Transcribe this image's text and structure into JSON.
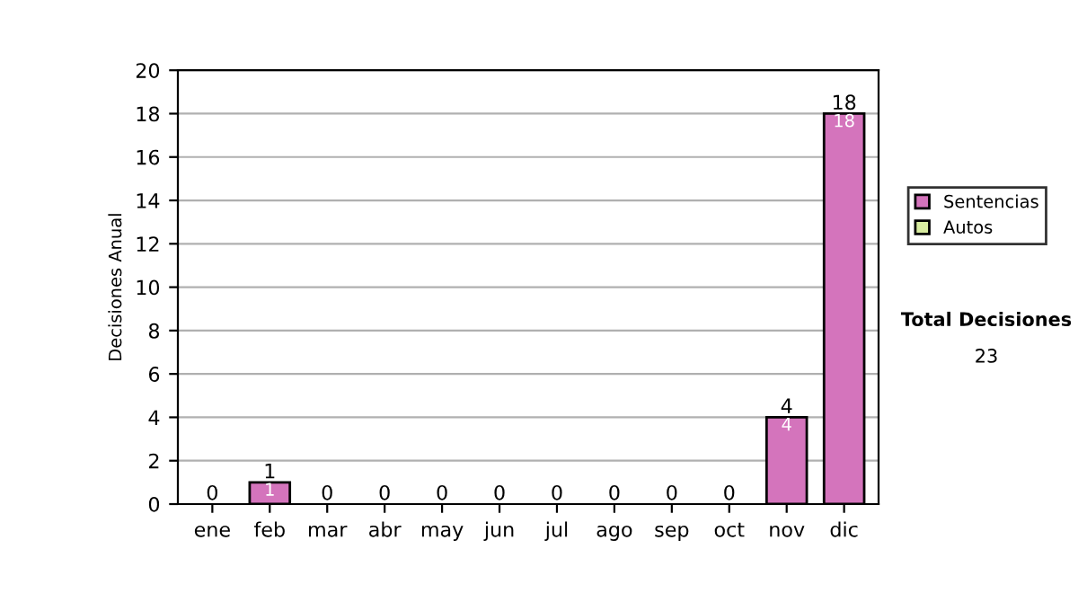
{
  "chart_data": {
    "type": "bar",
    "ylabel": "Decisiones Anual",
    "categories": [
      "ene",
      "feb",
      "mar",
      "abr",
      "may",
      "jun",
      "jul",
      "ago",
      "sep",
      "oct",
      "nov",
      "dic"
    ],
    "series": [
      {
        "name": "Sentencias",
        "color": "#d474bc",
        "values": [
          0,
          1,
          0,
          0,
          0,
          0,
          0,
          0,
          0,
          0,
          4,
          18
        ],
        "value_labels": [
          null,
          "1",
          null,
          null,
          null,
          null,
          null,
          null,
          null,
          null,
          "4",
          "18"
        ]
      },
      {
        "name": "Autos",
        "color": "#d8eca0",
        "values": [
          0,
          0,
          0,
          0,
          0,
          0,
          0,
          0,
          0,
          0,
          0,
          0
        ]
      }
    ],
    "stacked": true,
    "totals": [
      "0",
      "1",
      "0",
      "0",
      "0",
      "0",
      "0",
      "0",
      "0",
      "0",
      "4",
      "18"
    ],
    "ylim": [
      0,
      20
    ],
    "yticks": [
      0,
      2,
      4,
      6,
      8,
      10,
      12,
      14,
      16,
      18,
      20
    ],
    "grid": "y",
    "legend": "right",
    "annotations": [
      "Total Decisiones",
      "23"
    ]
  }
}
